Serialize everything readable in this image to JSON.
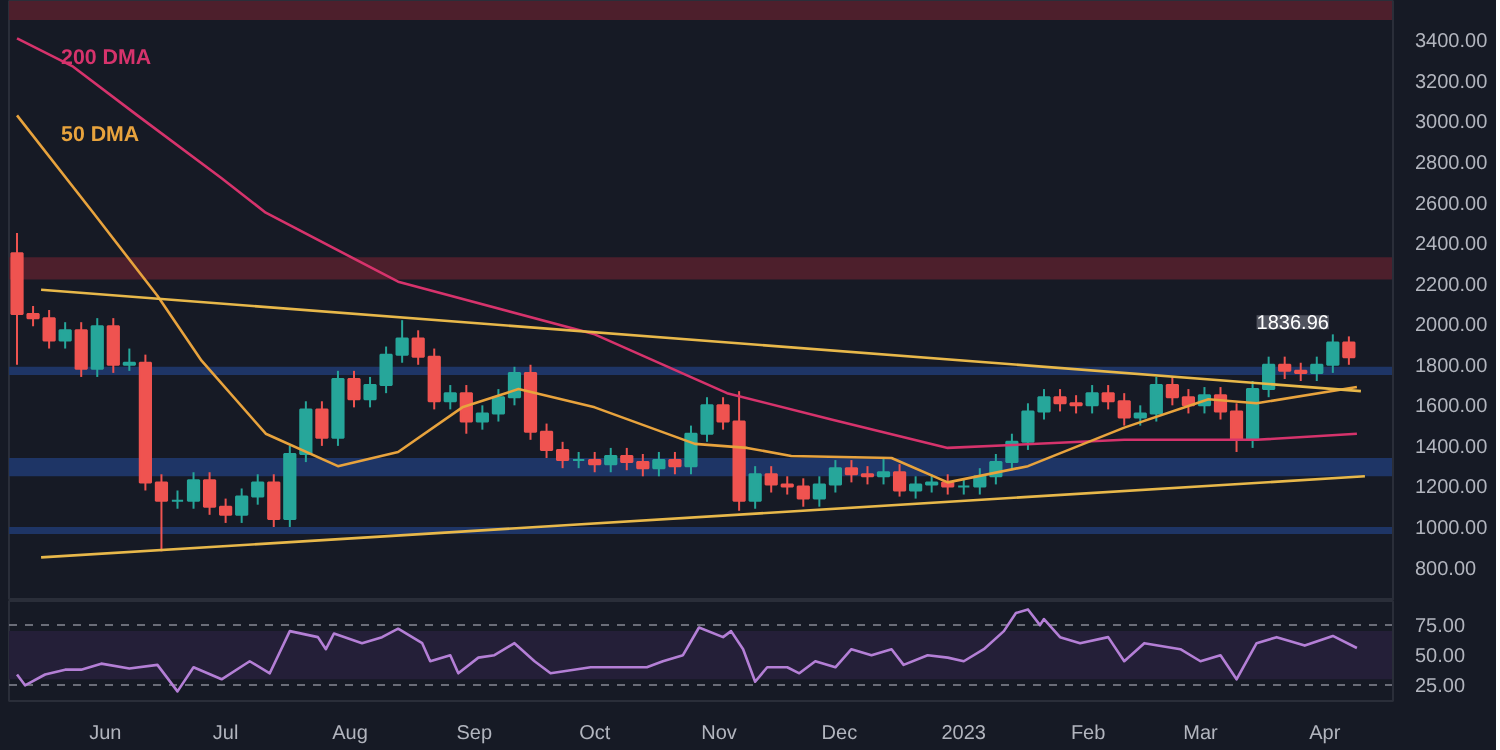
{
  "chart_data": [
    {
      "type": "candlestick",
      "x": [
        "2022-05-10",
        "2022-05-14",
        "2022-05-18",
        "2022-05-22",
        "2022-05-26",
        "2022-05-30",
        "2022-06-03",
        "2022-06-07",
        "2022-06-11",
        "2022-06-15",
        "2022-06-19",
        "2022-06-23",
        "2022-06-27",
        "2022-07-01",
        "2022-07-05",
        "2022-07-09",
        "2022-07-13",
        "2022-07-17",
        "2022-07-21",
        "2022-07-25",
        "2022-07-29",
        "2022-08-02",
        "2022-08-06",
        "2022-08-10",
        "2022-08-14",
        "2022-08-18",
        "2022-08-22",
        "2022-08-26",
        "2022-08-30",
        "2022-09-03",
        "2022-09-07",
        "2022-09-11",
        "2022-09-15",
        "2022-09-19",
        "2022-09-23",
        "2022-09-27",
        "2022-10-01",
        "2022-10-05",
        "2022-10-09",
        "2022-10-13",
        "2022-10-17",
        "2022-10-21",
        "2022-10-25",
        "2022-10-29",
        "2022-11-02",
        "2022-11-06",
        "2022-11-10",
        "2022-11-14",
        "2022-11-18",
        "2022-11-22",
        "2022-11-26",
        "2022-11-30",
        "2022-12-04",
        "2022-12-08",
        "2022-12-12",
        "2022-12-16",
        "2022-12-20",
        "2022-12-24",
        "2022-12-28",
        "2023-01-01",
        "2023-01-05",
        "2023-01-09",
        "2023-01-13",
        "2023-01-17",
        "2023-01-21",
        "2023-01-25",
        "2023-01-29",
        "2023-02-02",
        "2023-02-06",
        "2023-02-10",
        "2023-02-14",
        "2023-02-18",
        "2023-02-22",
        "2023-02-26",
        "2023-03-02",
        "2023-03-06",
        "2023-03-10",
        "2023-03-14",
        "2023-03-18",
        "2023-03-22",
        "2023-03-26",
        "2023-03-30",
        "2023-04-03",
        "2023-04-07"
      ],
      "ohlc": [
        [
          2350,
          2450,
          1800,
          2050
        ],
        [
          2050,
          2090,
          1990,
          2030
        ],
        [
          2030,
          2070,
          1880,
          1920
        ],
        [
          1920,
          2010,
          1880,
          1970
        ],
        [
          1970,
          2010,
          1740,
          1780
        ],
        [
          1780,
          2030,
          1740,
          1990
        ],
        [
          1990,
          2030,
          1760,
          1800
        ],
        [
          1800,
          1880,
          1770,
          1810
        ],
        [
          1810,
          1850,
          1180,
          1220
        ],
        [
          1220,
          1260,
          880,
          1130
        ],
        [
          1130,
          1180,
          1090,
          1130
        ],
        [
          1130,
          1270,
          1090,
          1230
        ],
        [
          1230,
          1270,
          1060,
          1100
        ],
        [
          1100,
          1140,
          1020,
          1060
        ],
        [
          1060,
          1190,
          1020,
          1150
        ],
        [
          1150,
          1260,
          1110,
          1220
        ],
        [
          1220,
          1260,
          1000,
          1040
        ],
        [
          1040,
          1400,
          1000,
          1360
        ],
        [
          1360,
          1620,
          1320,
          1580
        ],
        [
          1580,
          1620,
          1400,
          1440
        ],
        [
          1440,
          1770,
          1400,
          1730
        ],
        [
          1730,
          1770,
          1590,
          1630
        ],
        [
          1630,
          1740,
          1590,
          1700
        ],
        [
          1700,
          1890,
          1660,
          1850
        ],
        [
          1850,
          2020,
          1810,
          1930
        ],
        [
          1930,
          1970,
          1800,
          1840
        ],
        [
          1840,
          1880,
          1580,
          1620
        ],
        [
          1620,
          1700,
          1580,
          1660
        ],
        [
          1660,
          1700,
          1460,
          1520
        ],
        [
          1520,
          1600,
          1480,
          1560
        ],
        [
          1560,
          1680,
          1520,
          1640
        ],
        [
          1640,
          1790,
          1600,
          1760
        ],
        [
          1760,
          1800,
          1430,
          1470
        ],
        [
          1470,
          1510,
          1340,
          1380
        ],
        [
          1380,
          1420,
          1290,
          1330
        ],
        [
          1330,
          1370,
          1290,
          1330
        ],
        [
          1330,
          1370,
          1270,
          1310
        ],
        [
          1310,
          1390,
          1270,
          1350
        ],
        [
          1350,
          1390,
          1280,
          1320
        ],
        [
          1320,
          1360,
          1250,
          1290
        ],
        [
          1290,
          1370,
          1250,
          1330
        ],
        [
          1330,
          1370,
          1260,
          1300
        ],
        [
          1300,
          1500,
          1260,
          1460
        ],
        [
          1460,
          1640,
          1420,
          1600
        ],
        [
          1600,
          1640,
          1480,
          1520
        ],
        [
          1520,
          1670,
          1080,
          1130
        ],
        [
          1130,
          1300,
          1090,
          1260
        ],
        [
          1260,
          1300,
          1170,
          1210
        ],
        [
          1210,
          1250,
          1160,
          1200
        ],
        [
          1200,
          1240,
          1100,
          1140
        ],
        [
          1140,
          1250,
          1100,
          1210
        ],
        [
          1210,
          1330,
          1170,
          1290
        ],
        [
          1290,
          1330,
          1220,
          1260
        ],
        [
          1260,
          1300,
          1210,
          1250
        ],
        [
          1250,
          1340,
          1210,
          1270
        ],
        [
          1270,
          1310,
          1150,
          1180
        ],
        [
          1180,
          1250,
          1140,
          1210
        ],
        [
          1210,
          1260,
          1170,
          1220
        ],
        [
          1220,
          1260,
          1160,
          1200
        ],
        [
          1200,
          1240,
          1160,
          1200
        ],
        [
          1200,
          1290,
          1160,
          1250
        ],
        [
          1250,
          1360,
          1210,
          1320
        ],
        [
          1320,
          1460,
          1280,
          1420
        ],
        [
          1420,
          1610,
          1380,
          1570
        ],
        [
          1570,
          1680,
          1530,
          1640
        ],
        [
          1640,
          1680,
          1570,
          1610
        ],
        [
          1610,
          1650,
          1560,
          1600
        ],
        [
          1600,
          1700,
          1560,
          1660
        ],
        [
          1660,
          1700,
          1580,
          1620
        ],
        [
          1620,
          1660,
          1500,
          1540
        ],
        [
          1540,
          1600,
          1500,
          1560
        ],
        [
          1560,
          1740,
          1520,
          1700
        ],
        [
          1700,
          1740,
          1600,
          1640
        ],
        [
          1640,
          1680,
          1560,
          1600
        ],
        [
          1600,
          1690,
          1560,
          1650
        ],
        [
          1650,
          1690,
          1530,
          1570
        ],
        [
          1570,
          1610,
          1370,
          1430
        ],
        [
          1430,
          1720,
          1390,
          1680
        ],
        [
          1680,
          1840,
          1640,
          1800
        ],
        [
          1800,
          1840,
          1730,
          1770
        ],
        [
          1770,
          1810,
          1720,
          1760
        ],
        [
          1760,
          1840,
          1720,
          1800
        ],
        [
          1800,
          1950,
          1760,
          1910
        ],
        [
          1910,
          1940,
          1800,
          1836.96
        ]
      ],
      "series": [
        {
          "type": "line",
          "name": "200 DMA",
          "color": "#d6336c",
          "x": [
            "2022-05-10",
            "2022-05-24",
            "2022-06-09",
            "2022-06-30",
            "2022-07-11",
            "2022-08-13",
            "2022-10-01",
            "2022-11-03",
            "2022-11-29",
            "2022-12-28",
            "2023-02-10",
            "2023-03-15",
            "2023-04-09"
          ],
          "values": [
            3410,
            3270,
            3030,
            2720,
            2550,
            2210,
            1950,
            1660,
            1530,
            1390,
            1430,
            1430,
            1460
          ]
        },
        {
          "type": "line",
          "name": "50 DMA",
          "color": "#e8a33d",
          "x": [
            "2022-05-10",
            "2022-05-29",
            "2022-06-14",
            "2022-06-25",
            "2022-07-11",
            "2022-07-29",
            "2022-08-13",
            "2022-08-29",
            "2022-09-12",
            "2022-10-01",
            "2022-10-26",
            "2022-11-08",
            "2022-11-19",
            "2022-12-14",
            "2022-12-28",
            "2023-01-17",
            "2023-02-10",
            "2023-03-03",
            "2023-03-15",
            "2023-04-09"
          ],
          "values": [
            3030,
            2550,
            2140,
            1820,
            1460,
            1300,
            1370,
            1590,
            1680,
            1590,
            1410,
            1390,
            1350,
            1340,
            1220,
            1300,
            1490,
            1630,
            1610,
            1690
          ]
        },
        {
          "type": "line",
          "color": "#e8b84a",
          "x": [
            "2022-05-16",
            "2023-04-10"
          ],
          "values": [
            2170,
            1670
          ]
        },
        {
          "type": "line",
          "color": "#e8b84a",
          "x": [
            "2022-05-16",
            "2023-04-11"
          ],
          "values": [
            850,
            1250
          ]
        }
      ],
      "bands": [
        {
          "axis": "y",
          "from": 3500,
          "to": 3594,
          "color": "#4d1f2c"
        },
        {
          "axis": "y",
          "from": 2220,
          "to": 2330,
          "color": "#4d1f2c"
        },
        {
          "axis": "y",
          "from": 1750,
          "to": 1790,
          "color": "#1e3566"
        },
        {
          "axis": "y",
          "from": 1250,
          "to": 1340,
          "color": "#1e3566"
        },
        {
          "axis": "y",
          "from": 965,
          "to": 1000,
          "color": "#1e3566"
        }
      ],
      "xlim": [
        "2022-05-08",
        "2023-04-18"
      ],
      "ylim": [
        635,
        3594
      ],
      "yticks": [
        {
          "value": 800,
          "label": "800.00"
        },
        {
          "value": 1000,
          "label": "1000.00"
        },
        {
          "value": 1200,
          "label": "1200.00"
        },
        {
          "value": 1400,
          "label": "1400.00"
        },
        {
          "value": 1600,
          "label": "1600.00"
        },
        {
          "value": 1800,
          "label": "1800.00"
        },
        {
          "value": 2000,
          "label": "2000.00"
        },
        {
          "value": 2200,
          "label": "2200.00"
        },
        {
          "value": 2400,
          "label": "2400.00"
        },
        {
          "value": 2600,
          "label": "2600.00"
        },
        {
          "value": 2800,
          "label": "2800.00"
        },
        {
          "value": 3000,
          "label": "3000.00"
        },
        {
          "value": 3200,
          "label": "3200.00"
        },
        {
          "value": 3400,
          "label": "3400.00"
        }
      ],
      "tick_labels": "y",
      "annotations": [
        {
          "text": "1836.96",
          "x": "2023-04-09",
          "y": 1836.96
        }
      ]
    },
    {
      "type": "line",
      "series": [
        {
          "color": "#b47fd6",
          "x": [
            "2022-05-10",
            "2022-05-12",
            "2022-05-17",
            "2022-05-22",
            "2022-05-26",
            "2022-05-31",
            "2022-06-07",
            "2022-06-14",
            "2022-06-19",
            "2022-06-23",
            "2022-06-30",
            "2022-07-07",
            "2022-07-12",
            "2022-07-17",
            "2022-07-24",
            "2022-07-26",
            "2022-07-28",
            "2022-08-04",
            "2022-08-09",
            "2022-08-13",
            "2022-08-19",
            "2022-08-21",
            "2022-08-26",
            "2022-08-28",
            "2022-09-02",
            "2022-09-06",
            "2022-09-11",
            "2022-09-16",
            "2022-09-20",
            "2022-09-30",
            "2022-10-14",
            "2022-10-18",
            "2022-10-23",
            "2022-10-27",
            "2022-11-02",
            "2022-11-04",
            "2022-11-07",
            "2022-11-10",
            "2022-11-13",
            "2022-11-18",
            "2022-11-21",
            "2022-11-25",
            "2022-11-30",
            "2022-12-04",
            "2022-12-09",
            "2022-12-14",
            "2022-12-17",
            "2022-12-23",
            "2022-12-28",
            "2023-01-01",
            "2023-01-06",
            "2023-01-11",
            "2023-01-14",
            "2023-01-17",
            "2023-01-20",
            "2023-01-21",
            "2023-01-25",
            "2023-01-30",
            "2023-02-06",
            "2023-02-10",
            "2023-02-15",
            "2023-02-24",
            "2023-03-01",
            "2023-03-06",
            "2023-03-10",
            "2023-03-15",
            "2023-03-20",
            "2023-03-27",
            "2023-04-03",
            "2023-04-09"
          ],
          "values": [
            34,
            25,
            34,
            38,
            38,
            43,
            39,
            42,
            20,
            40,
            30,
            45,
            35,
            70,
            65,
            55,
            68,
            60,
            65,
            72,
            60,
            45,
            50,
            35,
            48,
            50,
            60,
            45,
            35,
            40,
            40,
            45,
            50,
            73,
            65,
            70,
            55,
            28,
            40,
            40,
            35,
            45,
            40,
            55,
            50,
            55,
            42,
            50,
            48,
            45,
            55,
            70,
            85,
            88,
            75,
            80,
            65,
            60,
            65,
            45,
            60,
            55,
            45,
            50,
            30,
            60,
            65,
            58,
            66,
            56
          ]
        }
      ],
      "bands": [
        {
          "axis": "y",
          "from": 30,
          "to": 70,
          "color": "#241f38"
        }
      ],
      "xlim": [
        "2022-05-08",
        "2023-04-18"
      ],
      "ylim": [
        12,
        95
      ],
      "yticks": [
        {
          "value": 25,
          "label": "25.00"
        },
        {
          "value": 50,
          "label": "50.00"
        },
        {
          "value": 75,
          "label": "75.00"
        }
      ],
      "xticks": [
        {
          "value": "2022-06-01",
          "label": "Jun"
        },
        {
          "value": "2022-07-01",
          "label": "Jul"
        },
        {
          "value": "2022-08-01",
          "label": "Aug"
        },
        {
          "value": "2022-09-01",
          "label": "Sep"
        },
        {
          "value": "2022-10-01",
          "label": "Oct"
        },
        {
          "value": "2022-11-01",
          "label": "Nov"
        },
        {
          "value": "2022-12-01",
          "label": "Dec"
        },
        {
          "value": "2023-01-01",
          "label": "2023"
        },
        {
          "value": "2023-02-01",
          "label": "Feb"
        },
        {
          "value": "2023-03-01",
          "label": "Mar"
        },
        {
          "value": "2023-04-01",
          "label": "Apr"
        }
      ],
      "grid": "y"
    }
  ]
}
